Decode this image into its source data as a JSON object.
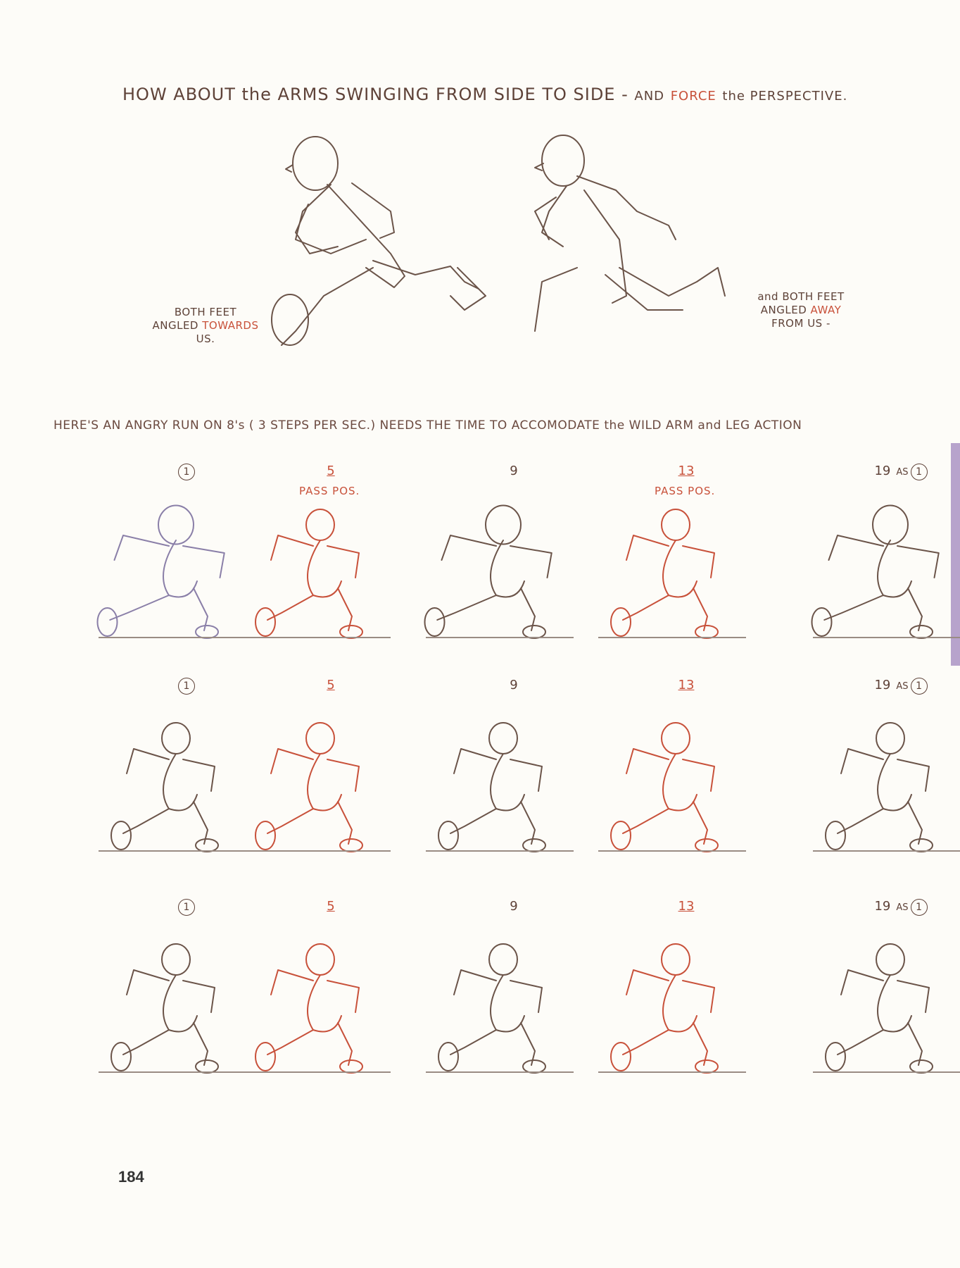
{
  "heading_top": {
    "part1": "HOW ABOUT the ARMS SWINGING FROM SIDE TO SIDE -",
    "part2": "AND",
    "part3": "FORCE",
    "part4": "the PERSPECTIVE."
  },
  "note_left": {
    "line1": "BOTH FEET",
    "line2a": "ANGLED",
    "line2b": "TOWARDS",
    "line3": "US."
  },
  "note_right": {
    "line1": "and BOTH FEET",
    "line2a": "ANGLED",
    "line2b": "AWAY",
    "line3": "FROM US -"
  },
  "heading_run": "HERE'S AN ANGRY RUN ON 8's ( 3 STEPS PER SEC.) NEEDS THE TIME TO ACCOMODATE the WILD ARM and LEG ACTION",
  "rows": [
    {
      "frames": [
        {
          "num": "1",
          "circled": true,
          "red": false
        },
        {
          "num": "5",
          "circled": false,
          "red": true,
          "note": "PASS POS."
        },
        {
          "num": "9",
          "circled": false,
          "red": false
        },
        {
          "num": "13",
          "circled": false,
          "red": true,
          "note": "PASS POS."
        },
        {
          "num": "19",
          "circled": false,
          "red": false,
          "as": "AS",
          "as_num": "1"
        }
      ]
    },
    {
      "frames": [
        {
          "num": "1",
          "circled": true,
          "red": false
        },
        {
          "num": "5",
          "circled": false,
          "red": true
        },
        {
          "num": "9",
          "circled": false,
          "red": false
        },
        {
          "num": "13",
          "circled": false,
          "red": true
        },
        {
          "num": "19",
          "circled": false,
          "red": false,
          "as": "AS",
          "as_num": "1"
        }
      ]
    },
    {
      "frames": [
        {
          "num": "1",
          "circled": true,
          "red": false
        },
        {
          "num": "5",
          "circled": false,
          "red": true
        },
        {
          "num": "9",
          "circled": false,
          "red": false
        },
        {
          "num": "13",
          "circled": false,
          "red": true
        },
        {
          "num": "19",
          "circled": false,
          "red": false,
          "as": "AS",
          "as_num": "1"
        }
      ]
    }
  ],
  "page_number": "184",
  "colors": {
    "ink": "#5e4238",
    "red_ink": "#c8513a",
    "tab": "#b7a3cc"
  }
}
